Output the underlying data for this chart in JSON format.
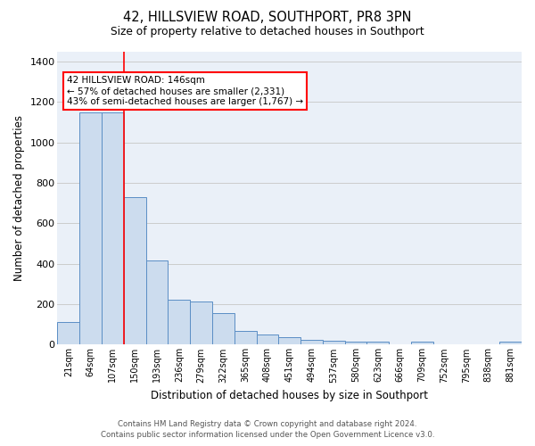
{
  "title1": "42, HILLSVIEW ROAD, SOUTHPORT, PR8 3PN",
  "title2": "Size of property relative to detached houses in Southport",
  "xlabel": "Distribution of detached houses by size in Southport",
  "ylabel": "Number of detached properties",
  "categories": [
    "21sqm",
    "64sqm",
    "107sqm",
    "150sqm",
    "193sqm",
    "236sqm",
    "279sqm",
    "322sqm",
    "365sqm",
    "408sqm",
    "451sqm",
    "494sqm",
    "537sqm",
    "580sqm",
    "623sqm",
    "666sqm",
    "709sqm",
    "752sqm",
    "795sqm",
    "838sqm",
    "881sqm"
  ],
  "values": [
    110,
    1150,
    1150,
    730,
    415,
    220,
    215,
    155,
    70,
    50,
    35,
    22,
    18,
    15,
    13,
    0,
    13,
    0,
    0,
    0,
    13
  ],
  "bar_color": "#ccdcee",
  "bar_edge_color": "#5b8ec5",
  "red_line_index": 3,
  "annotation_line1": "42 HILLSVIEW ROAD: 146sqm",
  "annotation_line2": "← 57% of detached houses are smaller (2,331)",
  "annotation_line3": "43% of semi-detached houses are larger (1,767) →",
  "annotation_box_color": "white",
  "annotation_box_edge_color": "red",
  "ylim": [
    0,
    1450
  ],
  "yticks": [
    0,
    200,
    400,
    600,
    800,
    1000,
    1200,
    1400
  ],
  "grid_color": "#cccccc",
  "bg_color": "#eaf0f8",
  "footer1": "Contains HM Land Registry data © Crown copyright and database right 2024.",
  "footer2": "Contains public sector information licensed under the Open Government Licence v3.0.",
  "bar_width": 1.0
}
